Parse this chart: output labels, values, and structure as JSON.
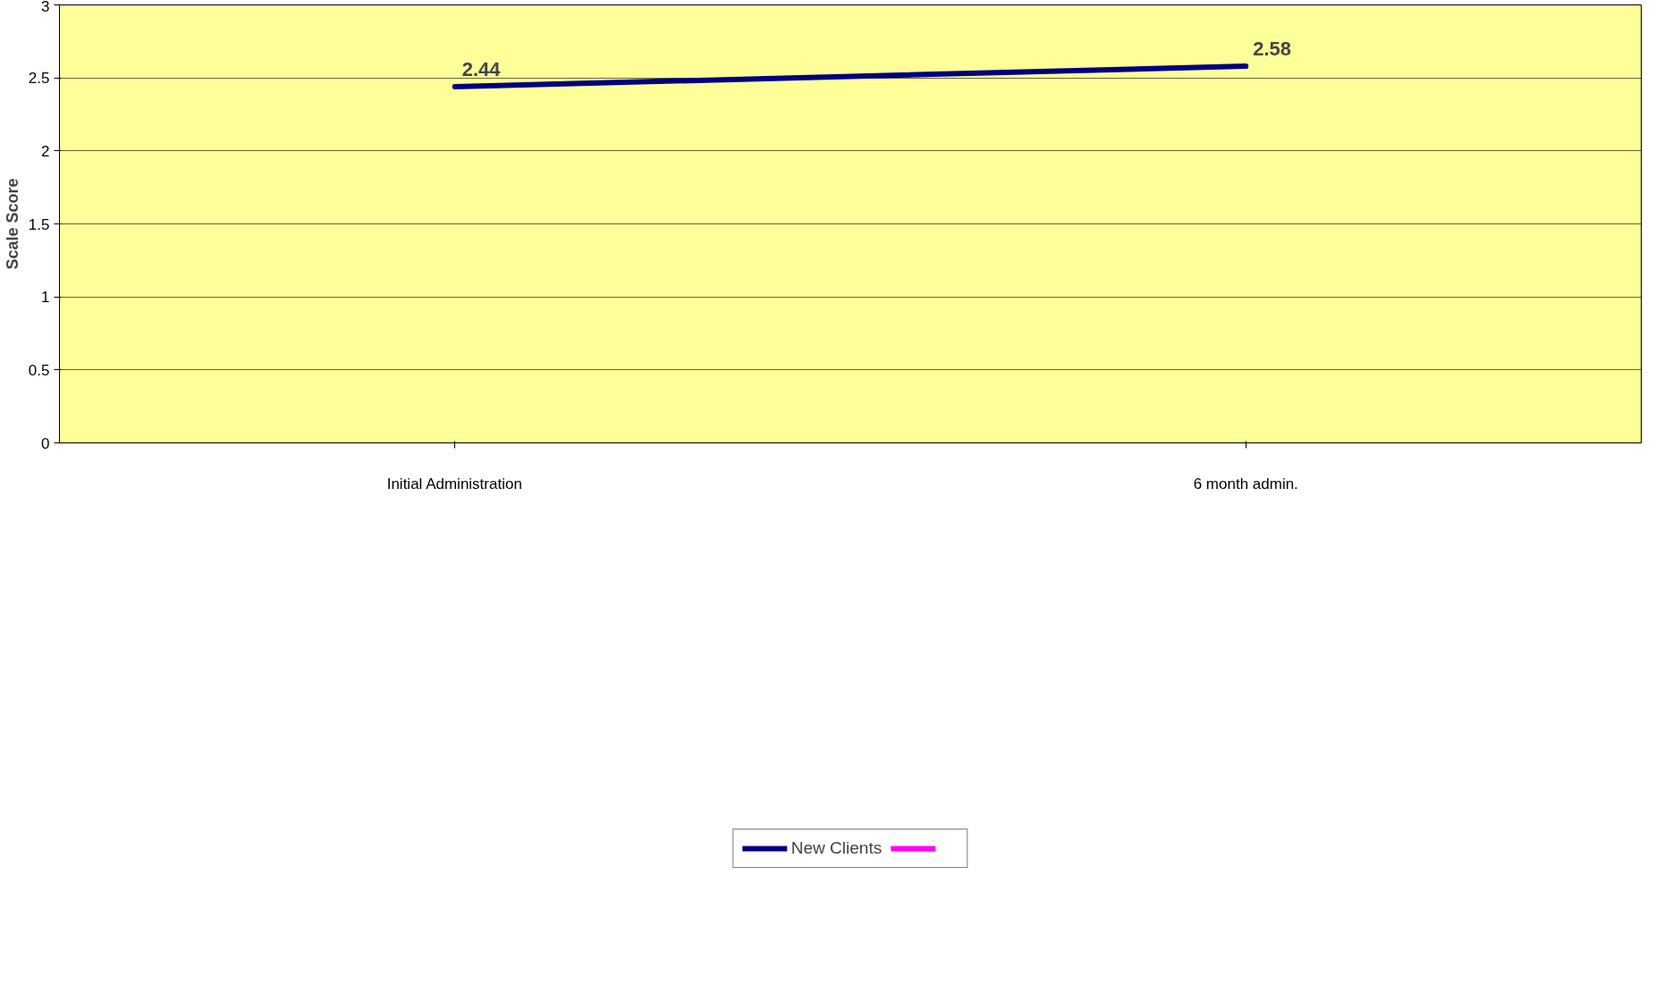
{
  "chart_data": {
    "type": "line",
    "ylabel": "Scale Score",
    "categories": [
      "Initial Administration",
      "6 month admin."
    ],
    "series": [
      {
        "name": "New Clients",
        "color": "#000080",
        "values": [
          2.44,
          2.58
        ]
      },
      {
        "color": "#ff00ff",
        "values": [
          null,
          null
        ]
      }
    ],
    "ylim": [
      0,
      3
    ],
    "yticks": [
      0,
      0.5,
      1,
      1.5,
      2,
      2.5,
      3
    ],
    "grid": "y",
    "legend": "bottom",
    "data_labels": true,
    "marker": "none",
    "line_style": "solid"
  }
}
